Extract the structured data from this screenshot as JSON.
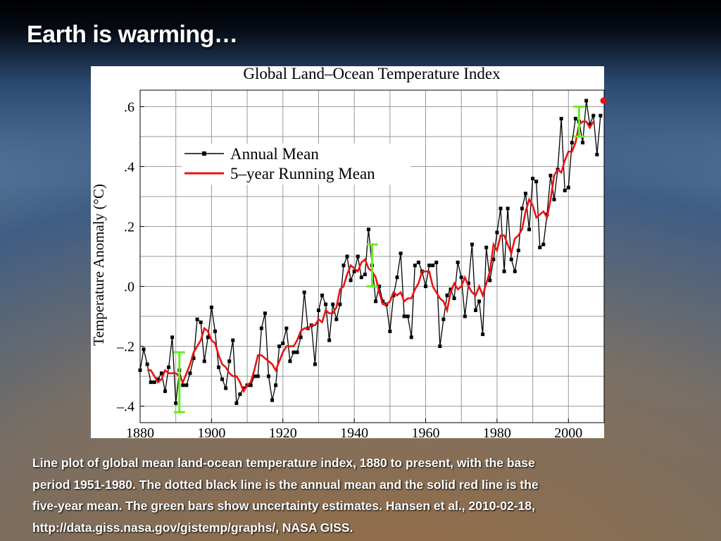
{
  "slide": {
    "title": "Earth is warming…",
    "caption": [
      "Line plot of global mean land-ocean temperature index, 1880 to present, with the base",
      "period 1951-1980. The dotted black line is the annual mean and the solid red line is the",
      "five-year mean. The green bars show uncertainty estimates.  Hansen et al., 2010-02-18,",
      "http://data.giss.nasa.gov/gistemp/graphs/, NASA GISS."
    ]
  },
  "chart_data": {
    "type": "line",
    "title": "Global Land–Ocean Temperature Index",
    "y_label": "Temperature Anomaly (°C)",
    "x": [
      1880,
      1881,
      1882,
      1883,
      1884,
      1885,
      1886,
      1887,
      1888,
      1889,
      1890,
      1891,
      1892,
      1893,
      1894,
      1895,
      1896,
      1897,
      1898,
      1899,
      1900,
      1901,
      1902,
      1903,
      1904,
      1905,
      1906,
      1907,
      1908,
      1909,
      1910,
      1911,
      1912,
      1913,
      1914,
      1915,
      1916,
      1917,
      1918,
      1919,
      1920,
      1921,
      1922,
      1923,
      1924,
      1925,
      1926,
      1927,
      1928,
      1929,
      1930,
      1931,
      1932,
      1933,
      1934,
      1935,
      1936,
      1937,
      1938,
      1939,
      1940,
      1941,
      1942,
      1943,
      1944,
      1945,
      1946,
      1947,
      1948,
      1949,
      1950,
      1951,
      1952,
      1953,
      1954,
      1955,
      1956,
      1957,
      1958,
      1959,
      1960,
      1961,
      1962,
      1963,
      1964,
      1965,
      1966,
      1967,
      1968,
      1969,
      1970,
      1971,
      1972,
      1973,
      1974,
      1975,
      1976,
      1977,
      1978,
      1979,
      1980,
      1981,
      1982,
      1983,
      1984,
      1985,
      1986,
      1987,
      1988,
      1989,
      1990,
      1991,
      1992,
      1993,
      1994,
      1995,
      1996,
      1997,
      1998,
      1999,
      2000,
      2001,
      2002,
      2003,
      2004,
      2005,
      2006,
      2007,
      2008,
      2009
    ],
    "series": [
      {
        "name": "Annual Mean",
        "color": "#000000",
        "marker": "square",
        "values": [
          -0.28,
          -0.21,
          -0.26,
          -0.32,
          -0.32,
          -0.31,
          -0.29,
          -0.35,
          -0.27,
          -0.17,
          -0.39,
          -0.28,
          -0.33,
          -0.33,
          -0.29,
          -0.24,
          -0.11,
          -0.12,
          -0.25,
          -0.17,
          -0.07,
          -0.15,
          -0.27,
          -0.31,
          -0.34,
          -0.25,
          -0.18,
          -0.39,
          -0.36,
          -0.34,
          -0.33,
          -0.33,
          -0.3,
          -0.3,
          -0.14,
          -0.09,
          -0.3,
          -0.38,
          -0.33,
          -0.2,
          -0.19,
          -0.14,
          -0.25,
          -0.22,
          -0.22,
          -0.17,
          -0.02,
          -0.14,
          -0.13,
          -0.26,
          -0.08,
          -0.03,
          -0.06,
          -0.18,
          -0.06,
          -0.11,
          -0.06,
          0.07,
          0.1,
          0.02,
          0.05,
          0.1,
          0.03,
          0.04,
          0.19,
          0.07,
          -0.05,
          0.0,
          -0.05,
          -0.06,
          -0.15,
          -0.03,
          0.03,
          0.11,
          -0.1,
          -0.1,
          -0.17,
          0.07,
          0.08,
          0.05,
          0.0,
          0.07,
          0.07,
          0.08,
          -0.2,
          -0.11,
          -0.03,
          -0.01,
          -0.04,
          0.08,
          0.03,
          -0.1,
          0.01,
          0.14,
          -0.08,
          -0.05,
          -0.16,
          0.13,
          0.02,
          0.09,
          0.18,
          0.26,
          0.05,
          0.26,
          0.09,
          0.05,
          0.12,
          0.26,
          0.31,
          0.19,
          0.36,
          0.35,
          0.13,
          0.14,
          0.24,
          0.37,
          0.29,
          0.39,
          0.56,
          0.32,
          0.33,
          0.48,
          0.56,
          0.55,
          0.48,
          0.62,
          0.54,
          0.57,
          0.44,
          0.57
        ]
      },
      {
        "name": "5–year Running Mean",
        "color": "#ee1111",
        "values": [
          null,
          null,
          -0.28,
          -0.28,
          -0.3,
          -0.32,
          -0.31,
          -0.28,
          -0.29,
          -0.29,
          -0.29,
          -0.3,
          -0.32,
          -0.29,
          -0.26,
          -0.22,
          -0.2,
          -0.18,
          -0.14,
          -0.15,
          -0.18,
          -0.19,
          -0.23,
          -0.26,
          -0.27,
          -0.29,
          -0.3,
          -0.3,
          -0.32,
          -0.35,
          -0.33,
          -0.32,
          -0.28,
          -0.23,
          -0.23,
          -0.24,
          -0.25,
          -0.26,
          -0.28,
          -0.25,
          -0.22,
          -0.2,
          -0.2,
          -0.2,
          -0.18,
          -0.15,
          -0.14,
          -0.14,
          -0.13,
          -0.13,
          -0.11,
          -0.12,
          -0.08,
          -0.09,
          -0.09,
          -0.07,
          -0.01,
          0.0,
          0.04,
          0.07,
          0.06,
          0.05,
          0.08,
          0.09,
          0.06,
          0.05,
          0.03,
          -0.02,
          -0.06,
          -0.06,
          -0.05,
          -0.02,
          -0.03,
          -0.02,
          -0.05,
          -0.04,
          -0.04,
          -0.01,
          0.01,
          0.05,
          0.05,
          0.05,
          0.0,
          -0.02,
          -0.04,
          -0.05,
          -0.08,
          -0.02,
          0.01,
          -0.01,
          0.0,
          0.03,
          0.0,
          -0.02,
          -0.03,
          0.0,
          -0.03,
          0.01,
          0.05,
          0.14,
          0.12,
          0.17,
          0.17,
          0.14,
          0.11,
          0.16,
          0.17,
          0.19,
          0.25,
          0.29,
          0.27,
          0.23,
          0.24,
          0.25,
          0.23,
          0.29,
          0.37,
          0.39,
          0.38,
          0.42,
          0.45,
          0.45,
          0.48,
          0.54,
          0.55,
          0.55,
          0.53,
          0.55,
          null,
          null
        ]
      }
    ],
    "error_bars": {
      "color": "#66ee22",
      "x": [
        1891,
        1945,
        2003
      ],
      "values": [
        -0.32,
        0.07,
        0.55
      ],
      "errors": [
        0.1,
        0.07,
        0.05
      ]
    },
    "latest_point": {
      "color": "#ee1111",
      "x": 2010,
      "y": 0.62
    },
    "xlim": [
      1880,
      2010
    ],
    "ylim": [
      -0.455,
      0.655
    ],
    "xticks": [
      1880,
      1900,
      1920,
      1940,
      1960,
      1980,
      2000
    ],
    "yticks": [
      {
        "value": -0.4,
        "label": "–.4"
      },
      {
        "value": -0.2,
        "label": "–.2"
      },
      {
        "value": 0,
        "label": ".0"
      },
      {
        "value": 0.2,
        "label": ".2"
      },
      {
        "value": 0.4,
        "label": ".4"
      },
      {
        "value": 0.6,
        "label": ".6"
      }
    ],
    "xgrid": [
      1890,
      1900,
      1910,
      1920,
      1930,
      1940,
      1950,
      1960,
      1970,
      1980,
      1990,
      2000
    ],
    "ygrid": [
      -0.4,
      -0.3,
      -0.2,
      -0.1,
      0,
      0.1,
      0.2,
      0.3,
      0.4,
      0.5,
      0.6
    ],
    "legend": "upper left"
  }
}
